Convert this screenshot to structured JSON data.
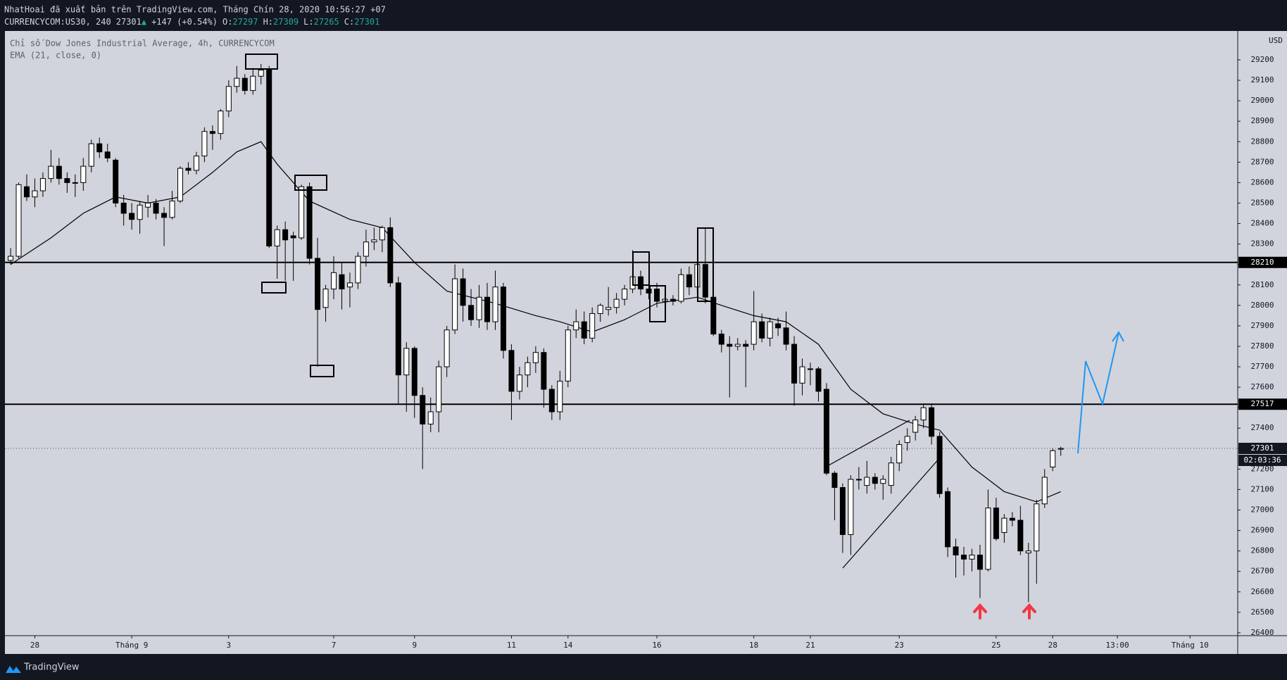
{
  "header": {
    "title": "NhatHoai đã xuất bản trên TradingView.com, Tháng Chín 28, 2020 10:56:27 +07",
    "symbol": "CURRENCYCOM:US30, 240",
    "last": "27301",
    "arrow": "▲",
    "change": "+147 (+0.54%)",
    "open_label": "O:",
    "open": "27297",
    "high_label": "H:",
    "high": "27309",
    "low_label": "L:",
    "low": "27265",
    "close_label": "C:",
    "close": "27301"
  },
  "chart_data": {
    "type": "candlestick",
    "title": "Chỉ số Dow Jones Industrial Average, 4h, CURRENCYCOM",
    "indicator": "EMA (21, close, 0)",
    "currency": "USD",
    "up_color": "#ffffff",
    "down_color": "#000000",
    "wick_color": "#000000",
    "xlim": [
      -0.7,
      151.9
    ],
    "ylim": [
      26386,
      29341
    ],
    "yticks": [
      26400,
      26500,
      26600,
      26700,
      26800,
      26900,
      27000,
      27100,
      27200,
      27300,
      27400,
      27500,
      27600,
      27700,
      27800,
      27900,
      28000,
      28100,
      28200,
      28300,
      28400,
      28500,
      28600,
      28700,
      28800,
      28900,
      29000,
      29100,
      29200
    ],
    "xticks": [
      {
        "value": 3,
        "label": "28"
      },
      {
        "value": 15,
        "label": "Tháng 9"
      },
      {
        "value": 27,
        "label": "3"
      },
      {
        "value": 40,
        "label": "7"
      },
      {
        "value": 50,
        "label": "9"
      },
      {
        "value": 62,
        "label": "11"
      },
      {
        "value": 69,
        "label": "14"
      },
      {
        "value": 80,
        "label": "16"
      },
      {
        "value": 92,
        "label": "18"
      },
      {
        "value": 99,
        "label": "21"
      },
      {
        "value": 110,
        "label": "23"
      },
      {
        "value": 122,
        "label": "25"
      },
      {
        "value": 129,
        "label": "28"
      },
      {
        "value": 137,
        "label": "13:00"
      },
      {
        "value": 146,
        "label": "Tháng 10"
      }
    ],
    "hlines": [
      28210,
      27517
    ],
    "last_price": 27301,
    "countdown": "02:03:36",
    "ema": {
      "color": "#000000",
      "x": [
        0,
        5,
        9,
        13,
        17,
        21,
        25,
        28,
        31,
        33,
        37,
        42,
        46,
        50,
        54,
        60,
        65,
        68,
        72,
        76,
        80,
        85,
        88,
        92,
        96,
        100,
        104,
        108,
        112,
        115,
        119,
        123,
        127,
        130
      ],
      "values": [
        28200,
        28330,
        28450,
        28530,
        28500,
        28530,
        28650,
        28750,
        28800,
        28690,
        28510,
        28420,
        28380,
        28210,
        28070,
        28010,
        27950,
        27920,
        27870,
        27930,
        28010,
        28040,
        28000,
        27950,
        27920,
        27810,
        27590,
        27470,
        27420,
        27390,
        27210,
        27090,
        27040,
        27090
      ]
    },
    "ohlc": [
      [
        28220,
        28280,
        28200,
        28240
      ],
      [
        28240,
        28600,
        28230,
        28590
      ],
      [
        28580,
        28640,
        28510,
        28530
      ],
      [
        28530,
        28620,
        28480,
        28560
      ],
      [
        28560,
        28650,
        28530,
        28620
      ],
      [
        28620,
        28760,
        28600,
        28680
      ],
      [
        28680,
        28720,
        28590,
        28620
      ],
      [
        28620,
        28650,
        28550,
        28600
      ],
      [
        28600,
        28640,
        28530,
        28600
      ],
      [
        28600,
        28720,
        28560,
        28680
      ],
      [
        28680,
        28810,
        28650,
        28790
      ],
      [
        28790,
        28820,
        28720,
        28750
      ],
      [
        28750,
        28790,
        28700,
        28720
      ],
      [
        28710,
        28720,
        28480,
        28500
      ],
      [
        28500,
        28540,
        28390,
        28450
      ],
      [
        28450,
        28500,
        28370,
        28420
      ],
      [
        28420,
        28510,
        28350,
        28490
      ],
      [
        28480,
        28540,
        28430,
        28500
      ],
      [
        28500,
        28520,
        28420,
        28450
      ],
      [
        28450,
        28480,
        28290,
        28430
      ],
      [
        28430,
        28560,
        28420,
        28510
      ],
      [
        28510,
        28680,
        28500,
        28670
      ],
      [
        28670,
        28700,
        28640,
        28660
      ],
      [
        28660,
        28750,
        28640,
        28730
      ],
      [
        28730,
        28870,
        28700,
        28850
      ],
      [
        28850,
        28880,
        28760,
        28840
      ],
      [
        28840,
        28960,
        28810,
        28950
      ],
      [
        28950,
        29100,
        28920,
        29070
      ],
      [
        29070,
        29170,
        29040,
        29110
      ],
      [
        29110,
        29130,
        29030,
        29050
      ],
      [
        29050,
        29160,
        29030,
        29120
      ],
      [
        29120,
        29180,
        29080,
        29150
      ],
      [
        29150,
        29170,
        28280,
        28290
      ],
      [
        28290,
        28390,
        28130,
        28370
      ],
      [
        28370,
        28410,
        28120,
        28320
      ],
      [
        28340,
        28360,
        28120,
        28330
      ],
      [
        28330,
        28590,
        28320,
        28580
      ],
      [
        28580,
        28600,
        28200,
        28230
      ],
      [
        28230,
        28330,
        27700,
        27980
      ],
      [
        27990,
        28100,
        27920,
        28080
      ],
      [
        28080,
        28240,
        28030,
        28160
      ],
      [
        28150,
        28210,
        27980,
        28080
      ],
      [
        28090,
        28160,
        27990,
        28110
      ],
      [
        28110,
        28260,
        28080,
        28240
      ],
      [
        28240,
        28370,
        28190,
        28310
      ],
      [
        28310,
        28380,
        28270,
        28320
      ],
      [
        28320,
        28390,
        28260,
        28380
      ],
      [
        28380,
        28430,
        28090,
        28110
      ],
      [
        28110,
        28140,
        27520,
        27660
      ],
      [
        27660,
        27820,
        27480,
        27790
      ],
      [
        27790,
        27800,
        27450,
        27560
      ],
      [
        27560,
        27600,
        27200,
        27420
      ],
      [
        27420,
        27550,
        27380,
        27480
      ],
      [
        27480,
        27730,
        27380,
        27700
      ],
      [
        27700,
        27900,
        27650,
        27880
      ],
      [
        27880,
        28200,
        27860,
        28130
      ],
      [
        28130,
        28180,
        27920,
        28000
      ],
      [
        28000,
        28080,
        27900,
        27930
      ],
      [
        27930,
        28100,
        27890,
        28040
      ],
      [
        28040,
        28110,
        27880,
        27920
      ],
      [
        27920,
        28170,
        27880,
        28090
      ],
      [
        28090,
        28110,
        27740,
        27780
      ],
      [
        27780,
        27810,
        27440,
        27580
      ],
      [
        27580,
        27700,
        27540,
        27660
      ],
      [
        27660,
        27750,
        27600,
        27720
      ],
      [
        27720,
        27800,
        27670,
        27770
      ],
      [
        27770,
        27790,
        27500,
        27590
      ],
      [
        27590,
        27610,
        27440,
        27480
      ],
      [
        27480,
        27680,
        27440,
        27630
      ],
      [
        27630,
        27900,
        27600,
        27880
      ],
      [
        27880,
        27980,
        27840,
        27920
      ],
      [
        27920,
        27970,
        27810,
        27840
      ],
      [
        27840,
        27990,
        27820,
        27960
      ],
      [
        27960,
        28010,
        27920,
        28000
      ],
      [
        27980,
        28090,
        27950,
        27990
      ],
      [
        27990,
        28060,
        27960,
        28030
      ],
      [
        28030,
        28100,
        28000,
        28080
      ],
      [
        28080,
        28270,
        28060,
        28140
      ],
      [
        28140,
        28170,
        28050,
        28080
      ],
      [
        28080,
        28130,
        28030,
        28060
      ],
      [
        28080,
        28110,
        27990,
        28020
      ],
      [
        28020,
        28070,
        28000,
        28030
      ],
      [
        28030,
        28050,
        28000,
        28020
      ],
      [
        28020,
        28180,
        28010,
        28150
      ],
      [
        28150,
        28190,
        28050,
        28090
      ],
      [
        28090,
        28210,
        28060,
        28200
      ],
      [
        28200,
        28380,
        28010,
        28040
      ],
      [
        28040,
        28060,
        27850,
        27860
      ],
      [
        27860,
        27880,
        27770,
        27810
      ],
      [
        27810,
        27850,
        27550,
        27800
      ],
      [
        27800,
        27840,
        27780,
        27810
      ],
      [
        27810,
        27830,
        27600,
        27800
      ],
      [
        27810,
        28070,
        27780,
        27920
      ],
      [
        27920,
        27960,
        27820,
        27840
      ],
      [
        27840,
        27940,
        27800,
        27920
      ],
      [
        27910,
        27940,
        27850,
        27890
      ],
      [
        27890,
        27970,
        27780,
        27810
      ],
      [
        27810,
        27850,
        27510,
        27620
      ],
      [
        27620,
        27740,
        27560,
        27700
      ],
      [
        27690,
        27720,
        27610,
        27690
      ],
      [
        27690,
        27700,
        27530,
        27580
      ],
      [
        27590,
        27620,
        27170,
        27180
      ],
      [
        27180,
        27190,
        26950,
        27110
      ],
      [
        27110,
        27130,
        26790,
        26880
      ],
      [
        26880,
        27170,
        26780,
        27150
      ],
      [
        27150,
        27210,
        27100,
        27150
      ],
      [
        27120,
        27240,
        27080,
        27160
      ],
      [
        27160,
        27180,
        27100,
        27130
      ],
      [
        27130,
        27170,
        27050,
        27150
      ],
      [
        27120,
        27260,
        27080,
        27230
      ],
      [
        27230,
        27340,
        27190,
        27320
      ],
      [
        27330,
        27400,
        27290,
        27360
      ],
      [
        27380,
        27460,
        27340,
        27440
      ],
      [
        27440,
        27520,
        27400,
        27500
      ],
      [
        27500,
        27520,
        27320,
        27360
      ],
      [
        27360,
        27380,
        27060,
        27080
      ],
      [
        27090,
        27110,
        26770,
        26820
      ],
      [
        26820,
        26860,
        26670,
        26780
      ],
      [
        26780,
        26820,
        26680,
        26760
      ],
      [
        26760,
        26810,
        26700,
        26780
      ],
      [
        26780,
        26830,
        26570,
        26710
      ],
      [
        26710,
        27100,
        26700,
        27010
      ],
      [
        27010,
        27060,
        26850,
        26860
      ],
      [
        26890,
        26980,
        26840,
        26960
      ],
      [
        26960,
        26990,
        26920,
        26950
      ],
      [
        26950,
        27020,
        26780,
        26800
      ],
      [
        26790,
        26840,
        26550,
        26800
      ],
      [
        26800,
        27050,
        26640,
        27030
      ],
      [
        27030,
        27200,
        27010,
        27160
      ],
      [
        27210,
        27300,
        27190,
        27290
      ],
      [
        27297,
        27309,
        27265,
        27301
      ]
    ]
  },
  "footer": {
    "brand": "TradingView"
  }
}
